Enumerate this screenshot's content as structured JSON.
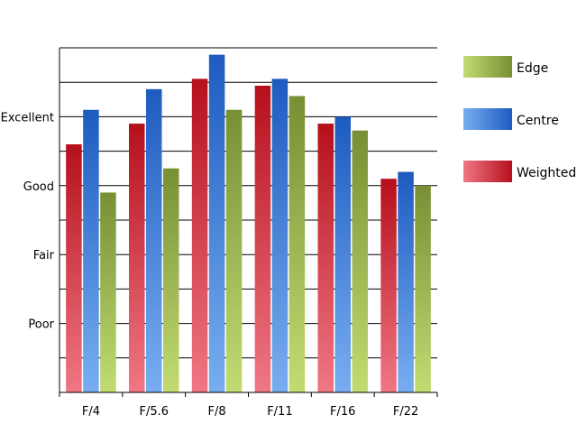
{
  "chart_data": {
    "type": "bar",
    "categories": [
      "F/4",
      "F/5.6",
      "F/8",
      "F/11",
      "F/16",
      "F/22"
    ],
    "y_tick_labels": [
      {
        "value": 2,
        "label": "Poor"
      },
      {
        "value": 4,
        "label": "Fair"
      },
      {
        "value": 6,
        "label": "Good"
      },
      {
        "value": 8,
        "label": "Excellent"
      }
    ],
    "ylim": [
      0,
      10
    ],
    "grid": true,
    "legend_position": "right",
    "series": [
      {
        "name": "Weighted",
        "values": [
          7.2,
          7.8,
          9.1,
          8.9,
          7.8,
          6.2
        ],
        "color_light": "#f07784",
        "color_dark": "#b5101c"
      },
      {
        "name": "Centre",
        "values": [
          8.2,
          8.8,
          9.8,
          9.1,
          8.0,
          6.4
        ],
        "color_light": "#78aef0",
        "color_dark": "#1e5bc0"
      },
      {
        "name": "Edge",
        "values": [
          5.8,
          6.5,
          8.2,
          8.6,
          7.6,
          6.0
        ],
        "color_light": "#c2dc72",
        "color_dark": "#788f34"
      }
    ],
    "legend_order": [
      "Edge",
      "Centre",
      "Weighted"
    ]
  }
}
